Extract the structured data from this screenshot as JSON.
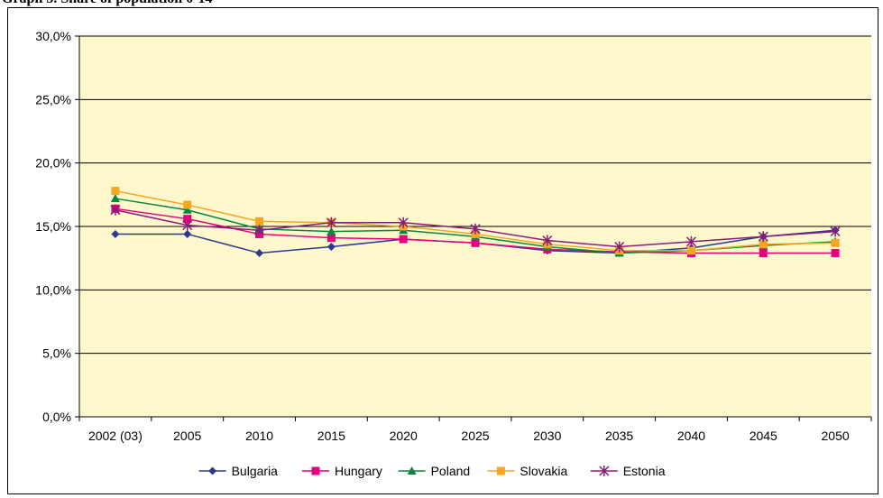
{
  "caption": "Graph 5. Share of population 0-14",
  "chart_data": {
    "type": "line",
    "title": "",
    "xlabel": "",
    "ylabel": "",
    "categories": [
      "2002 (03)",
      "2005",
      "2010",
      "2015",
      "2020",
      "2025",
      "2030",
      "2035",
      "2040",
      "2045",
      "2050"
    ],
    "ylim": [
      0,
      30
    ],
    "y_ticks": [
      0,
      5,
      10,
      15,
      20,
      25,
      30
    ],
    "y_tick_labels": [
      "0,0%",
      "5,0%",
      "10,0%",
      "15,0%",
      "20,0%",
      "25,0%",
      "30,0%"
    ],
    "grid": true,
    "plot_background": "#FFF8CC",
    "legend_position": "bottom",
    "series": [
      {
        "name": "Bulgaria",
        "color": "#2B3990",
        "marker": "diamond",
        "values": [
          14.4,
          14.4,
          12.9,
          13.4,
          14.0,
          13.7,
          13.1,
          12.9,
          13.3,
          14.2,
          14.7
        ]
      },
      {
        "name": "Hungary",
        "color": "#E6007E",
        "marker": "square",
        "values": [
          16.4,
          15.6,
          14.4,
          14.1,
          14.0,
          13.7,
          13.2,
          13.0,
          12.9,
          12.9,
          12.9
        ]
      },
      {
        "name": "Poland",
        "color": "#008A3E",
        "marker": "triangle",
        "values": [
          17.2,
          16.3,
          14.8,
          14.6,
          14.7,
          14.2,
          13.4,
          12.9,
          13.1,
          13.5,
          13.8
        ]
      },
      {
        "name": "Slovakia",
        "color": "#F5A623",
        "marker": "square",
        "values": [
          17.8,
          16.7,
          15.4,
          15.3,
          15.0,
          14.4,
          13.6,
          13.1,
          13.1,
          13.6,
          13.7
        ]
      },
      {
        "name": "Estonia",
        "color": "#8B1A7A",
        "marker": "star",
        "values": [
          16.3,
          15.1,
          14.7,
          15.3,
          15.3,
          14.8,
          13.9,
          13.4,
          13.8,
          14.2,
          14.6
        ]
      }
    ]
  }
}
